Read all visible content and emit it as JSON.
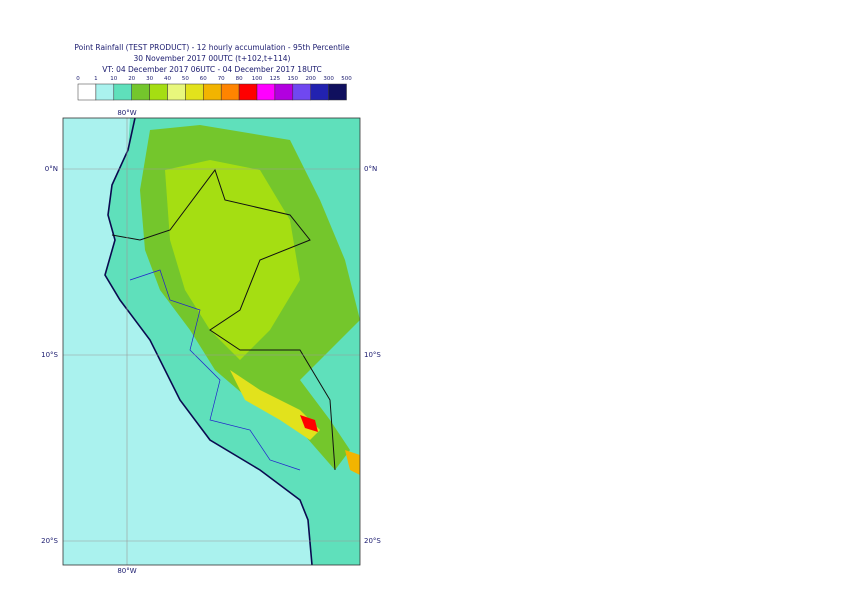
{
  "header": {
    "lines": [
      "Point Rainfall (TEST PRODUCT) - 12 hourly accumulation - 95th Percentile",
      "30 November 2017 00UTC (t+102,t+114)",
      "VT: 04 December 2017 06UTC - 04 December 2017 18UTC"
    ]
  },
  "legend": {
    "labels": [
      "0",
      "1",
      "10",
      "20",
      "30",
      "40",
      "50",
      "60",
      "70",
      "80",
      "100",
      "125",
      "150",
      "200",
      "300",
      "500"
    ],
    "colors": [
      "#ffffff",
      "#aaf2ee",
      "#5fe0bb",
      "#74c62c",
      "#a5de12",
      "#e8f77c",
      "#e2e21c",
      "#f2b400",
      "#ff8400",
      "#ff0000",
      "#ff00ff",
      "#b200e0",
      "#7048f0",
      "#2222b0",
      "#10105e"
    ]
  },
  "map": {
    "lon_labels": [
      "80°W"
    ],
    "lat_labels": [
      "0°N",
      "10°S",
      "20°S"
    ]
  }
}
